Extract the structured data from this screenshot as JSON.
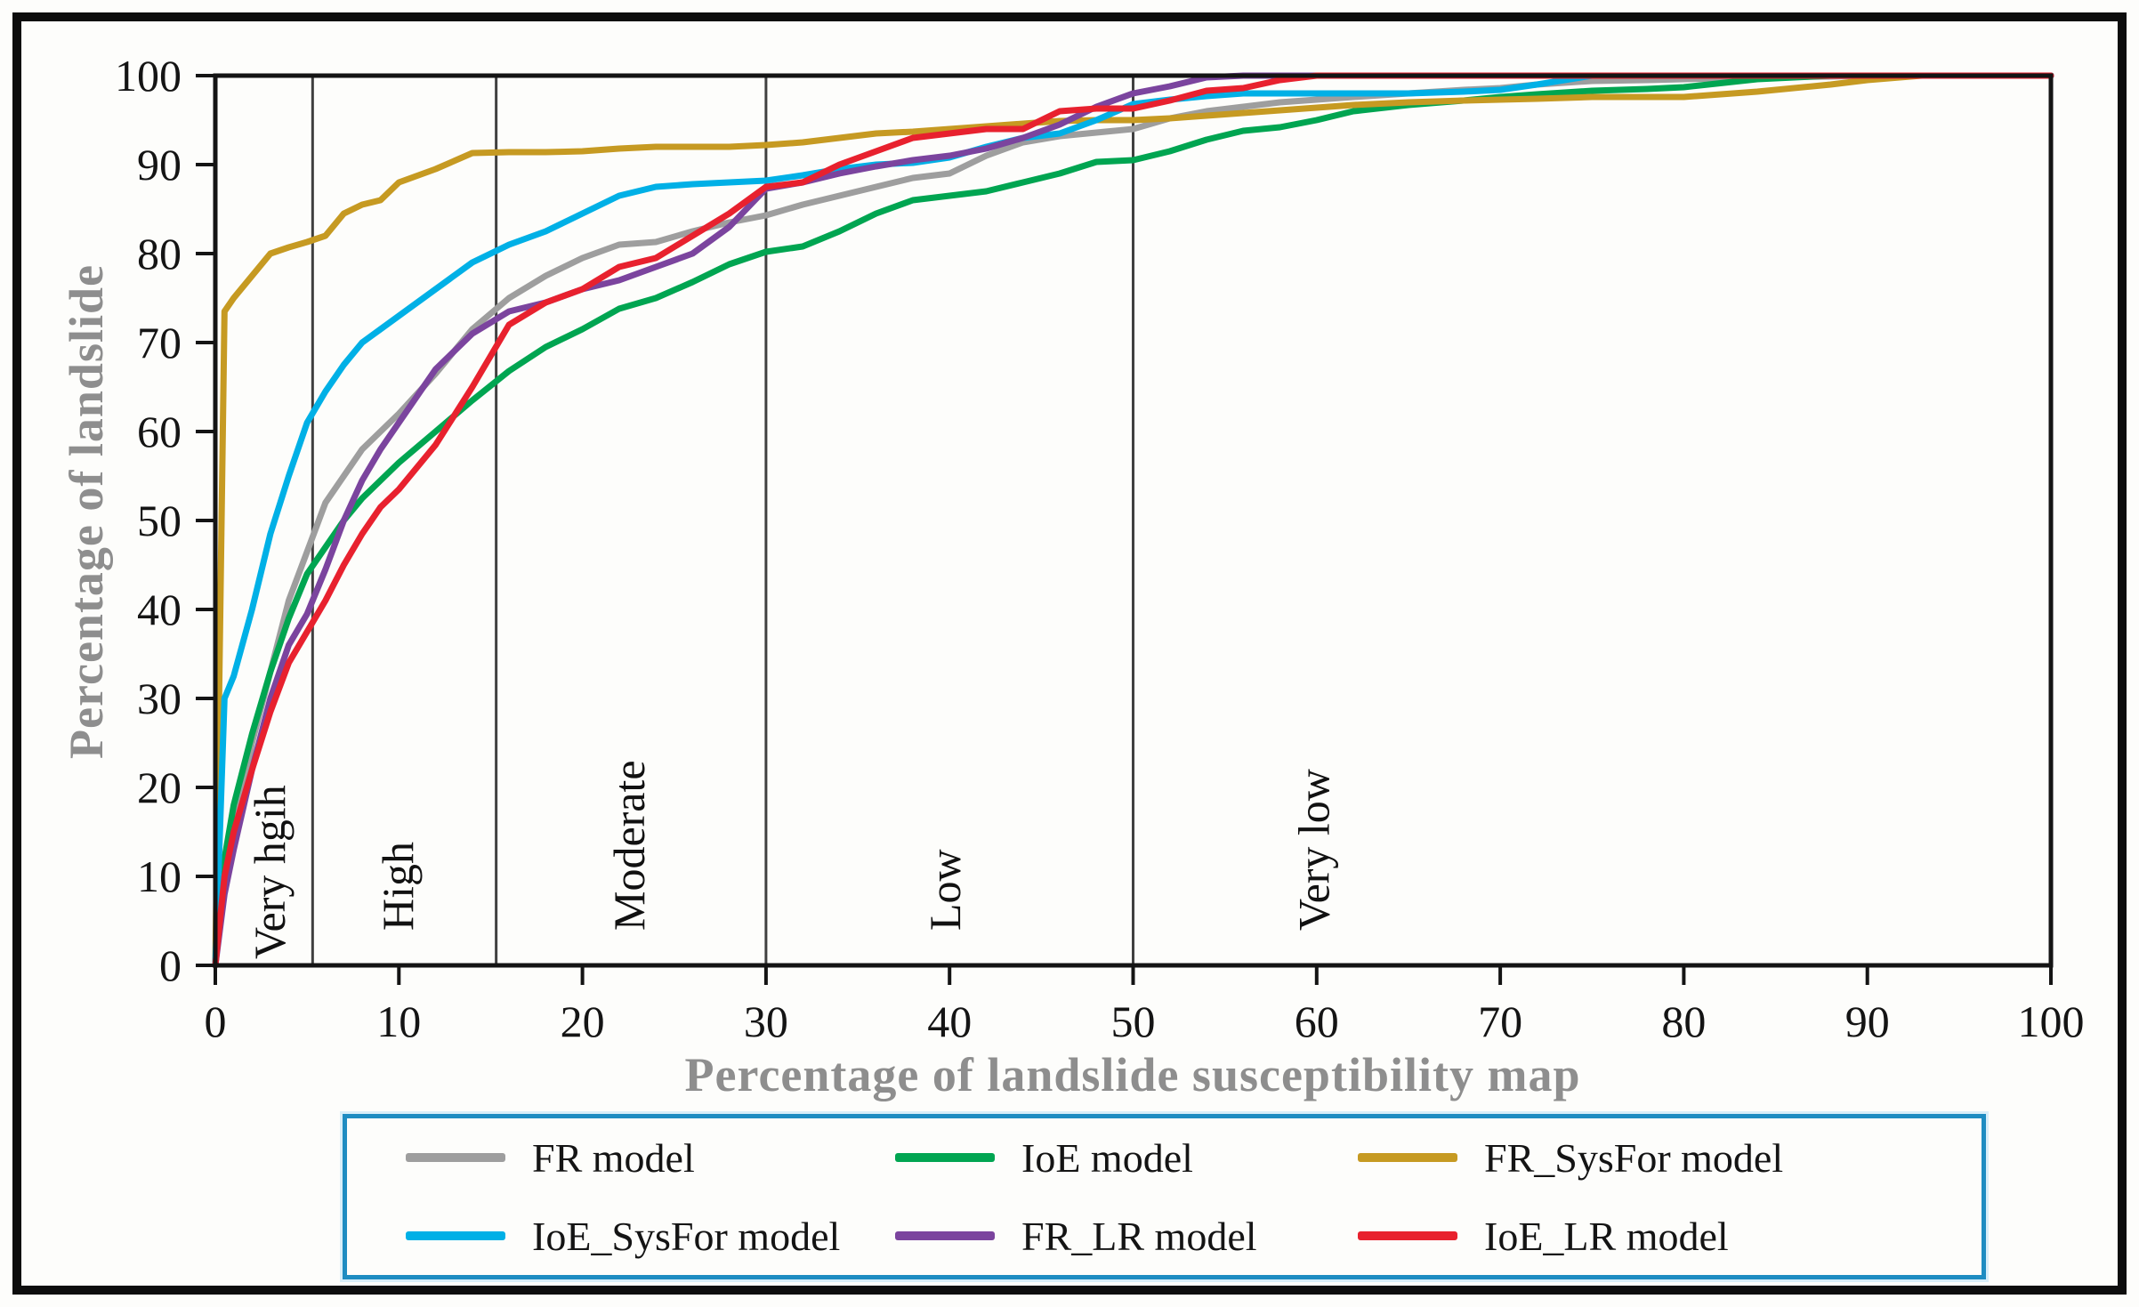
{
  "figure": {
    "y_axis_label": "Percentage of landslide",
    "x_axis_label": "Percentage of landslide susceptibility map"
  },
  "chart_data": {
    "type": "line",
    "title": "",
    "xlabel": "Percentage of landslide susceptibility map",
    "ylabel": "Percentage of landslide",
    "xlim": [
      0,
      100
    ],
    "ylim": [
      0,
      100
    ],
    "grid": false,
    "legend_position": "bottom",
    "x_ticks": [
      0,
      10,
      20,
      30,
      40,
      50,
      60,
      70,
      80,
      90,
      100
    ],
    "y_ticks": [
      0,
      10,
      20,
      30,
      40,
      50,
      60,
      70,
      80,
      90,
      100
    ],
    "x": [
      0,
      0.5,
      1,
      2,
      3,
      4,
      5,
      6,
      7,
      8,
      9,
      10,
      12,
      14,
      16,
      18,
      20,
      22,
      24,
      26,
      28,
      30,
      32,
      34,
      36,
      38,
      40,
      42,
      44,
      46,
      48,
      50,
      52,
      54,
      56,
      58,
      60,
      62,
      65,
      68,
      70,
      72,
      75,
      78,
      80,
      84,
      88,
      90,
      93,
      96,
      100
    ],
    "series": [
      {
        "name": "FR model",
        "color": "#9e9e9e",
        "values": [
          0,
          10,
          15,
          25,
          33,
          41,
          46.5,
          52,
          55,
          58,
          60,
          62,
          66.5,
          71.5,
          75,
          77.5,
          79.5,
          81,
          81.3,
          82.5,
          83.5,
          84.3,
          85.5,
          86.5,
          87.5,
          88.5,
          89,
          91,
          92.5,
          93.2,
          93.6,
          94,
          95.2,
          96,
          96.5,
          97,
          97.3,
          97.6,
          98,
          98.4,
          98.6,
          99,
          99.4,
          99.5,
          99.6,
          99.8,
          99.9,
          100,
          100,
          100,
          100
        ]
      },
      {
        "name": "IoE model",
        "color": "#00a551",
        "values": [
          0,
          12,
          18,
          26,
          33,
          39,
          44,
          47,
          50,
          52.5,
          54.5,
          56.5,
          60,
          63.5,
          66.8,
          69.5,
          71.5,
          73.8,
          75,
          76.8,
          78.8,
          80.2,
          80.8,
          82.5,
          84.5,
          86,
          86.5,
          87,
          88,
          89,
          90.3,
          90.5,
          91.5,
          92.8,
          93.8,
          94.2,
          95,
          96,
          96.7,
          97.2,
          97.6,
          97.9,
          98.3,
          98.5,
          98.7,
          99.6,
          100,
          100,
          100,
          100,
          100
        ]
      },
      {
        "name": "FR_SysFor model",
        "color": "#c69a22",
        "values": [
          0,
          73.5,
          75,
          77.5,
          80,
          80.7,
          81.3,
          82,
          84.5,
          85.5,
          86,
          88,
          89.5,
          91.3,
          91.4,
          91.4,
          91.5,
          91.8,
          92,
          92,
          92,
          92.2,
          92.5,
          93,
          93.5,
          93.7,
          94,
          94.3,
          94.6,
          94.9,
          95,
          95,
          95.2,
          95.5,
          95.8,
          96.1,
          96.4,
          96.7,
          97,
          97.2,
          97.3,
          97.4,
          97.6,
          97.6,
          97.6,
          98.2,
          99,
          99.5,
          100,
          100,
          100
        ]
      },
      {
        "name": "IoE_SysFor model",
        "color": "#00b0e6",
        "values": [
          0,
          30,
          32.5,
          40,
          48.5,
          55,
          61,
          64.5,
          67.5,
          70,
          71.5,
          73,
          76,
          79,
          81,
          82.5,
          84.5,
          86.5,
          87.5,
          87.8,
          88,
          88.2,
          88.8,
          89.5,
          90,
          90.2,
          90.8,
          92,
          93,
          93.5,
          95,
          96.8,
          97.3,
          97.7,
          98,
          98,
          98,
          98,
          98,
          98.2,
          98.4,
          99,
          100,
          100,
          100,
          100,
          100,
          100,
          100,
          100,
          100
        ]
      },
      {
        "name": "FR_LR model",
        "color": "#7b449e",
        "values": [
          0,
          8,
          13,
          22,
          30,
          36,
          39.5,
          44.5,
          50,
          54.5,
          58,
          61,
          67,
          71,
          73.5,
          74.5,
          76,
          77,
          78.5,
          80,
          83,
          87.3,
          88,
          89,
          89.8,
          90.5,
          91,
          91.8,
          93,
          94.5,
          96.5,
          98,
          98.8,
          99.8,
          100,
          100,
          100,
          100,
          100,
          100,
          100,
          100,
          100,
          100,
          100,
          100,
          100,
          100,
          100,
          100,
          100
        ]
      },
      {
        "name": "IoE_LR model",
        "color": "#e8212e",
        "values": [
          0,
          10,
          15,
          22,
          28.5,
          34,
          37.5,
          41,
          45,
          48.5,
          51.5,
          53.5,
          58.5,
          65,
          72,
          74.5,
          76,
          78.5,
          79.5,
          82,
          84.5,
          87.5,
          88,
          90,
          91.5,
          93,
          93.5,
          94,
          94,
          96,
          96.3,
          96.3,
          97.2,
          98.3,
          98.6,
          99.5,
          100,
          100,
          100,
          100,
          100,
          100,
          100,
          100,
          100,
          100,
          100,
          100,
          100,
          100,
          100
        ]
      }
    ],
    "zone_boundaries_x": [
      5.3,
      15.3,
      30,
      50
    ],
    "zones": [
      {
        "label": "Very hgih",
        "x": 2.9
      },
      {
        "label": "High",
        "x": 9.9
      },
      {
        "label": "Moderate",
        "x": 22.5
      },
      {
        "label": "Low",
        "x": 39.7
      },
      {
        "label": "Very low",
        "x": 59.8
      }
    ]
  },
  "legend": {
    "border_color": "#1e8cc2",
    "items": [
      {
        "label": "FR model",
        "color": "#9e9e9e"
      },
      {
        "label": "IoE model",
        "color": "#00a551"
      },
      {
        "label": "FR_SysFor model",
        "color": "#c69a22"
      },
      {
        "label": "IoE_SysFor model",
        "color": "#00b0e6"
      },
      {
        "label": "FR_LR model",
        "color": "#7b449e"
      },
      {
        "label": "IoE_LR model",
        "color": "#e8212e"
      }
    ]
  },
  "colors": {
    "axis": "#141414",
    "zone_line": "#404040",
    "axis_title": "#8e8e8e",
    "figure_border": "#0d0d0d"
  }
}
